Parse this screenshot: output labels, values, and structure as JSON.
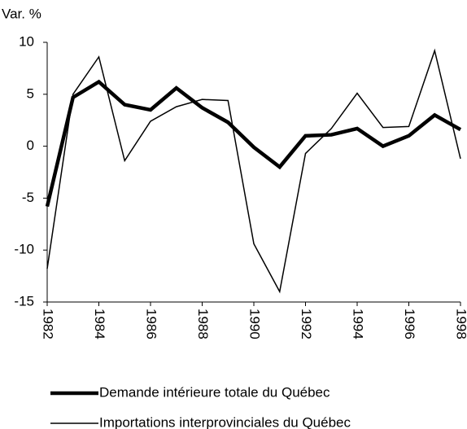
{
  "chart_data": {
    "type": "line",
    "y_label": "Var. %",
    "x": [
      1982,
      1983,
      1984,
      1985,
      1986,
      1987,
      1988,
      1989,
      1990,
      1991,
      1992,
      1993,
      1994,
      1995,
      1996,
      1997,
      1998
    ],
    "series": [
      {
        "name": "Demande intérieure totale du Québec",
        "color": "#000000",
        "values": [
          -5.8,
          4.7,
          6.2,
          4.0,
          3.5,
          5.6,
          3.7,
          2.3,
          -0.1,
          -2.0,
          1.0,
          1.1,
          1.7,
          0.0,
          1.0,
          3.0,
          1.6
        ]
      },
      {
        "name": "Importations interprovinciales du Québec",
        "color": "#000000",
        "values": [
          -11.8,
          5.0,
          8.6,
          -1.4,
          2.4,
          3.8,
          4.5,
          4.4,
          -9.4,
          -14.0,
          -0.7,
          1.7,
          5.1,
          1.8,
          1.9,
          9.2,
          -1.2
        ]
      }
    ],
    "xlim": [
      1982,
      1998
    ],
    "xticks": [
      1982,
      1984,
      1986,
      1988,
      1990,
      1992,
      1994,
      1996,
      1998
    ],
    "ylim": [
      -15,
      10
    ],
    "yticks": [
      -15,
      -10,
      -5,
      0,
      5,
      10
    ]
  }
}
